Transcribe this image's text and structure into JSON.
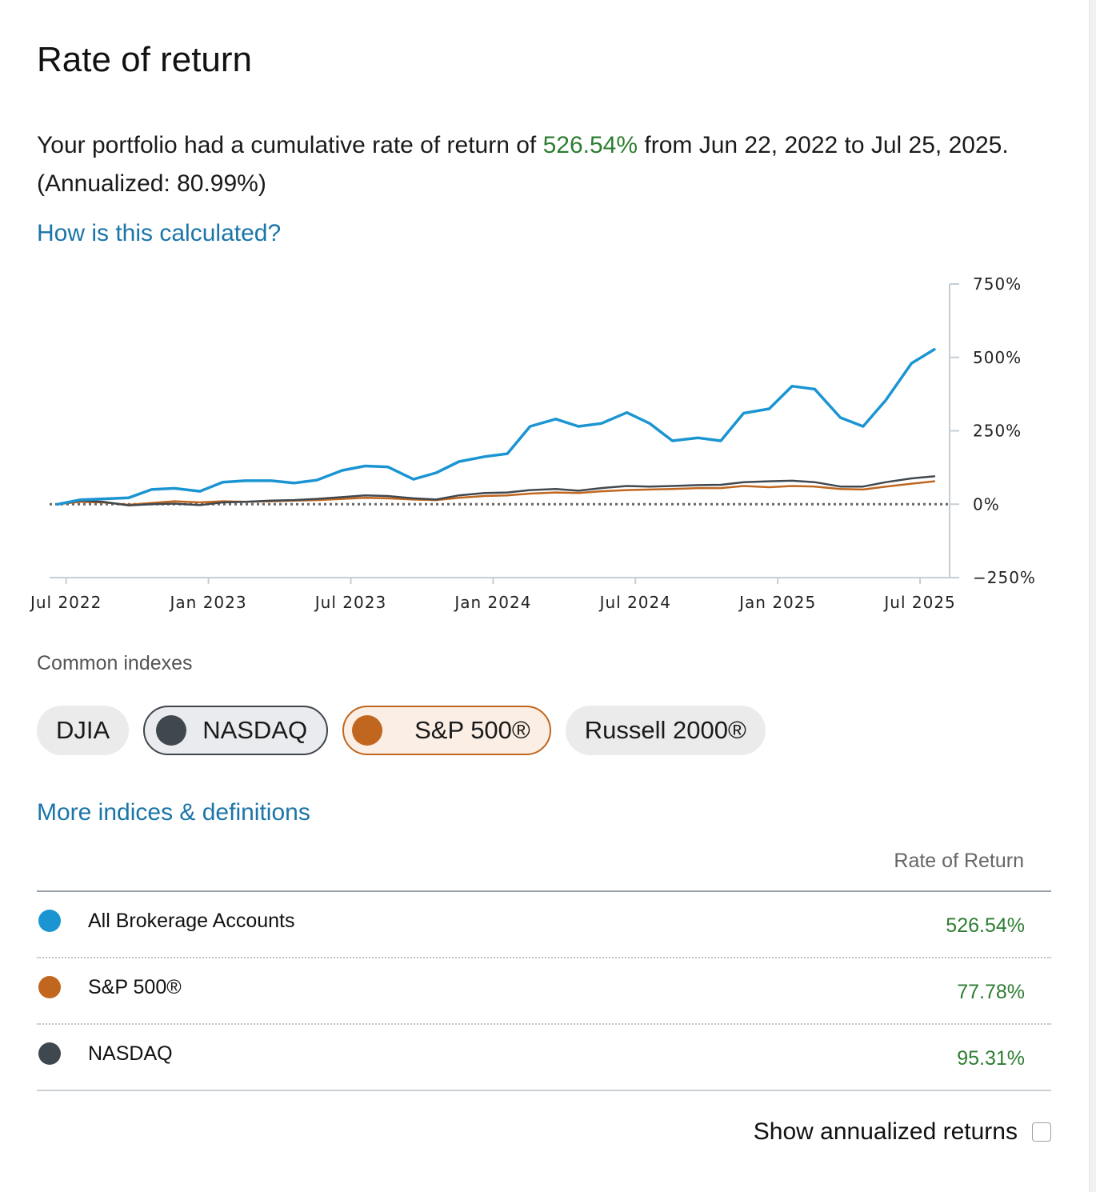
{
  "title": "Rate of return",
  "summary": {
    "prefix": "Your portfolio had a cumulative rate of return of ",
    "return_value": "526.54%",
    "suffix": " from Jun 22, 2022 to Jul 25, 2025. (Annualized: 80.99%)"
  },
  "how_link": "How is this calculated?",
  "chart_data": {
    "type": "line",
    "x_tick_labels": [
      "Jul 2022",
      "Jan 2023",
      "Jul 2023",
      "Jan 2024",
      "Jul 2024",
      "Jan 2025",
      "Jul 2025"
    ],
    "y_tick_labels": [
      "750%",
      "500%",
      "250%",
      "0%",
      "−250%"
    ],
    "ylim": [
      -250,
      750
    ],
    "x_start": 2022.47,
    "x_end": 2025.57,
    "series": [
      {
        "name": "All Brokerage Accounts",
        "color": "#1b95d2",
        "x": [
          2022.47,
          2022.55,
          2022.63,
          2022.72,
          2022.8,
          2022.88,
          2022.97,
          2023.05,
          2023.13,
          2023.22,
          2023.3,
          2023.38,
          2023.47,
          2023.55,
          2023.63,
          2023.72,
          2023.8,
          2023.88,
          2023.97,
          2024.05,
          2024.13,
          2024.22,
          2024.3,
          2024.38,
          2024.47,
          2024.55,
          2024.63,
          2024.72,
          2024.8,
          2024.88,
          2024.97,
          2025.05,
          2025.13,
          2025.22,
          2025.3,
          2025.38,
          2025.47,
          2025.55
        ],
        "values": [
          0,
          15,
          18,
          22,
          50,
          54,
          44,
          75,
          80,
          80,
          72,
          82,
          115,
          130,
          127,
          85,
          107,
          145,
          162,
          172,
          265,
          290,
          265,
          275,
          312,
          275,
          216,
          226,
          216,
          310,
          325,
          402,
          392,
          295,
          265,
          355,
          480,
          527
        ]
      },
      {
        "name": "S&P 500®",
        "color": "#c0661e",
        "x": [
          2022.47,
          2022.55,
          2022.63,
          2022.72,
          2022.8,
          2022.88,
          2022.97,
          2023.05,
          2023.13,
          2023.22,
          2023.3,
          2023.38,
          2023.47,
          2023.55,
          2023.63,
          2023.72,
          2023.8,
          2023.88,
          2023.97,
          2024.05,
          2024.13,
          2024.22,
          2024.3,
          2024.38,
          2024.47,
          2024.55,
          2024.63,
          2024.72,
          2024.8,
          2024.88,
          2024.97,
          2025.05,
          2025.13,
          2025.22,
          2025.3,
          2025.38,
          2025.47,
          2025.55
        ],
        "values": [
          0,
          8,
          6,
          -2,
          4,
          10,
          6,
          10,
          8,
          10,
          12,
          14,
          18,
          22,
          20,
          16,
          14,
          22,
          28,
          30,
          36,
          40,
          38,
          44,
          48,
          50,
          52,
          55,
          55,
          62,
          58,
          62,
          60,
          52,
          50,
          60,
          70,
          78
        ]
      },
      {
        "name": "NASDAQ",
        "color": "#40484f",
        "x": [
          2022.47,
          2022.55,
          2022.63,
          2022.72,
          2022.8,
          2022.88,
          2022.97,
          2023.05,
          2023.13,
          2023.22,
          2023.3,
          2023.38,
          2023.47,
          2023.55,
          2023.63,
          2023.72,
          2023.8,
          2023.88,
          2023.97,
          2024.05,
          2024.13,
          2024.22,
          2024.3,
          2024.38,
          2024.47,
          2024.55,
          2024.63,
          2024.72,
          2024.8,
          2024.88,
          2024.97,
          2025.05,
          2025.13,
          2025.22,
          2025.3,
          2025.38,
          2025.47,
          2025.55
        ],
        "values": [
          0,
          12,
          8,
          -4,
          0,
          2,
          -3,
          6,
          8,
          12,
          14,
          18,
          24,
          30,
          28,
          20,
          16,
          30,
          38,
          40,
          48,
          52,
          46,
          55,
          62,
          60,
          62,
          65,
          66,
          75,
          78,
          80,
          75,
          60,
          60,
          75,
          88,
          95
        ]
      }
    ]
  },
  "common_indexes_label": "Common indexes",
  "chips": [
    {
      "label": "DJIA",
      "selected": false
    },
    {
      "label": "NASDAQ",
      "selected": true,
      "color": "#40484f"
    },
    {
      "label": "S&P 500®",
      "selected": true,
      "color": "#c0661e"
    },
    {
      "label": "Russell 2000®",
      "selected": false
    }
  ],
  "more_link": "More indices & definitions",
  "table": {
    "header": "Rate of Return",
    "rows": [
      {
        "name": "All Brokerage Accounts",
        "value": "526.54%",
        "color": "#1b95d2"
      },
      {
        "name": "S&P 500®",
        "value": "77.78%",
        "color": "#c0661e"
      },
      {
        "name": "NASDAQ",
        "value": "95.31%",
        "color": "#40484f"
      }
    ]
  },
  "annualized_label": "Show annualized returns"
}
